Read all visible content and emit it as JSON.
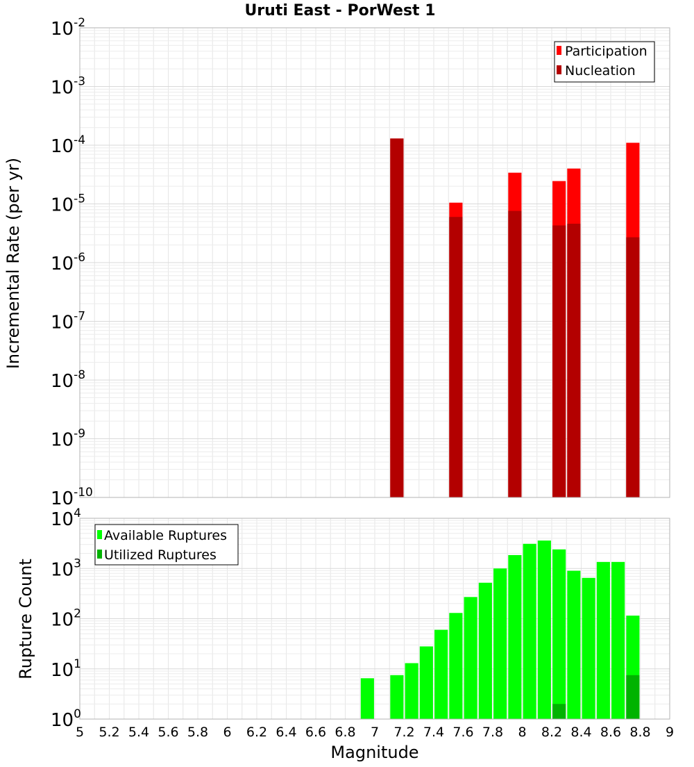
{
  "chart_data": [
    {
      "type": "bar",
      "title": "Uruti East - PorWest 1",
      "xlabel": "Magnitude",
      "ylabel": "Incremental Rate (per yr)",
      "xlim": [
        5,
        9
      ],
      "ylim_exponent": [
        -10,
        -2
      ],
      "yscale": "log",
      "bar_width": 0.09,
      "legend_position": "top-right",
      "series": [
        {
          "name": "Participation",
          "color": "#ff0000",
          "x": [
            7.15,
            7.55,
            7.95,
            8.25,
            8.35,
            8.75
          ],
          "values": [
            0.00013,
            1.05e-05,
            3.4e-05,
            2.45e-05,
            4e-05,
            0.00011
          ]
        },
        {
          "name": "Nucleation",
          "color": "#b30000",
          "x": [
            7.15,
            7.55,
            7.95,
            8.25,
            8.35,
            8.75
          ],
          "values": [
            0.00013,
            6e-06,
            7.6e-06,
            4.3e-06,
            4.6e-06,
            2.7e-06
          ]
        }
      ]
    },
    {
      "type": "bar",
      "title": "",
      "xlabel": "Magnitude",
      "ylabel": "Rupture Count",
      "xlim": [
        5,
        9
      ],
      "ylim_exponent": [
        0,
        4
      ],
      "yscale": "log",
      "bar_width": 0.09,
      "legend_position": "top-left",
      "x_ticks": [
        "5",
        "5.2",
        "5.4",
        "5.6",
        "5.8",
        "6",
        "6.2",
        "6.4",
        "6.6",
        "6.8",
        "7",
        "7.2",
        "7.4",
        "7.6",
        "7.8",
        "8",
        "8.2",
        "8.4",
        "8.6",
        "8.8",
        "9"
      ],
      "series": [
        {
          "name": "Available Ruptures",
          "color": "#00ff00",
          "x": [
            6.95,
            7.05,
            7.15,
            7.25,
            7.35,
            7.45,
            7.55,
            7.65,
            7.75,
            7.85,
            7.95,
            8.05,
            8.15,
            8.25,
            8.35,
            8.45,
            8.55,
            8.65,
            8.75
          ],
          "values": [
            6.5,
            1,
            7.5,
            13,
            28,
            60,
            130,
            270,
            520,
            1000,
            1850,
            3100,
            3600,
            2400,
            900,
            650,
            1350,
            1350,
            115
          ]
        },
        {
          "name": "Utilized Ruptures",
          "color": "#00b300",
          "x": [
            7.15,
            7.55,
            7.95,
            8.25,
            8.35,
            8.75
          ],
          "values": [
            1,
            1,
            1,
            2,
            1,
            7.5
          ]
        }
      ]
    }
  ]
}
